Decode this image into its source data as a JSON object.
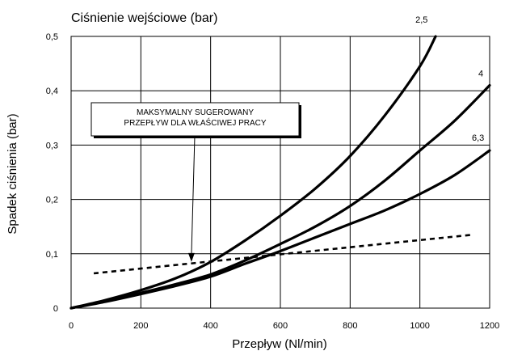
{
  "chart_data": {
    "type": "line",
    "title": "Ciśnienie wejściowe (bar)",
    "xlabel": "Przepływ (Nl/min)",
    "ylabel": "Spadek ciśnienia (bar)",
    "xlim": [
      0,
      1200
    ],
    "ylim": [
      0,
      0.5
    ],
    "x_ticks": [
      "0",
      "200",
      "400",
      "600",
      "800",
      "1000",
      "1200"
    ],
    "y_ticks": [
      "0",
      "0,1",
      "0,2",
      "0,3",
      "0,4",
      "0,5"
    ],
    "grid": true,
    "series": [
      {
        "name": "2,5",
        "style": "solid",
        "x": [
          0,
          100,
          200,
          300,
          400,
          500,
          600,
          700,
          800,
          900,
          1000,
          1045
        ],
        "y": [
          0,
          0.015,
          0.033,
          0.055,
          0.085,
          0.125,
          0.17,
          0.22,
          0.28,
          0.355,
          0.445,
          0.5
        ]
      },
      {
        "name": "4",
        "style": "solid",
        "x": [
          0,
          100,
          200,
          300,
          400,
          500,
          600,
          700,
          800,
          900,
          1000,
          1100,
          1200
        ],
        "y": [
          0,
          0.013,
          0.028,
          0.044,
          0.062,
          0.088,
          0.118,
          0.15,
          0.188,
          0.235,
          0.29,
          0.345,
          0.41
        ]
      },
      {
        "name": "6,3",
        "style": "solid",
        "x": [
          0,
          100,
          200,
          300,
          400,
          500,
          600,
          700,
          800,
          900,
          1000,
          1100,
          1200
        ],
        "y": [
          0,
          0.012,
          0.026,
          0.041,
          0.058,
          0.082,
          0.105,
          0.13,
          0.155,
          0.18,
          0.21,
          0.245,
          0.29
        ]
      },
      {
        "name": "",
        "style": "dashed",
        "x": [
          65,
          1150
        ],
        "y": [
          0.064,
          0.135
        ]
      }
    ],
    "series_labels": [
      "2,5",
      "4",
      "6,3"
    ],
    "annotation": {
      "lines": [
        "MAKSYMALNY SUGEROWANY",
        "PRZEPŁYW DLA WŁAŚCIWEJ PRACY"
      ],
      "arrow_to": {
        "x": 345,
        "y": 0.085
      }
    }
  }
}
